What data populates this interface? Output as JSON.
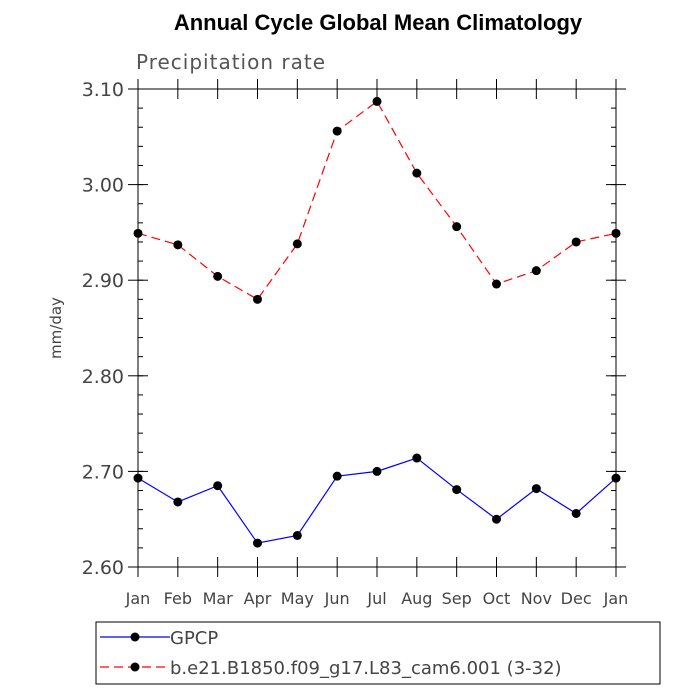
{
  "chart_data": {
    "type": "line",
    "title": "Annual Cycle Global Mean Climatology",
    "subtitle": "Precipitation rate",
    "ylabel": "mm/day",
    "xlabel": "",
    "categories": [
      "Jan",
      "Feb",
      "Mar",
      "Apr",
      "May",
      "Jun",
      "Jul",
      "Aug",
      "Sep",
      "Oct",
      "Nov",
      "Dec",
      "Jan"
    ],
    "ylim": [
      2.6,
      3.1
    ],
    "yticks": [
      "2.60",
      "2.70",
      "2.80",
      "2.90",
      "3.00",
      "3.10"
    ],
    "yminor_step": 0.02,
    "series": [
      {
        "name": "GPCP",
        "color": "#0000ff",
        "dash": "solid",
        "marker": "circle",
        "values": [
          2.693,
          2.668,
          2.685,
          2.625,
          2.633,
          2.695,
          2.7,
          2.714,
          2.681,
          2.65,
          2.682,
          2.656,
          2.693
        ]
      },
      {
        "name": "b.e21.B1850.f09_g17.L83_cam6.001 (3-32)",
        "color": "#ff0000",
        "dash": "dashed",
        "marker": "circle",
        "values": [
          2.949,
          2.937,
          2.904,
          2.88,
          2.938,
          3.056,
          3.087,
          3.012,
          2.956,
          2.896,
          2.91,
          2.94,
          2.949
        ]
      }
    ],
    "legend_position": "bottom",
    "grid": false
  }
}
